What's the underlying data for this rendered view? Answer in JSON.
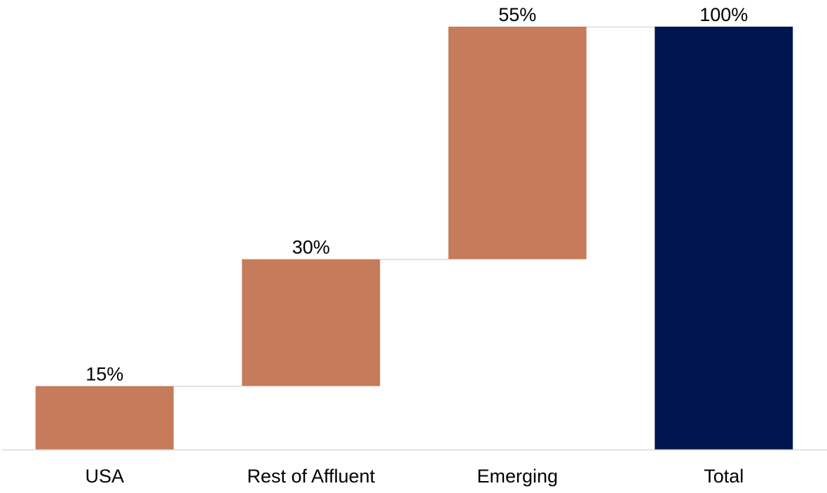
{
  "chart_data": {
    "type": "bar",
    "subtype": "waterfall",
    "categories": [
      "USA",
      "Rest of Affluent",
      "Emerging",
      "Total"
    ],
    "values": [
      15,
      30,
      55,
      100
    ],
    "labels": [
      "15%",
      "30%",
      "55%",
      "100%"
    ],
    "bar_kinds": [
      "increment",
      "increment",
      "increment",
      "total"
    ],
    "ylim": [
      0,
      100
    ],
    "grid": false,
    "legend": "none",
    "colors": {
      "increment": "#C67B5A",
      "total": "#00154F",
      "connector": "#D9D9D9",
      "axis": "#D9D9D9"
    }
  }
}
